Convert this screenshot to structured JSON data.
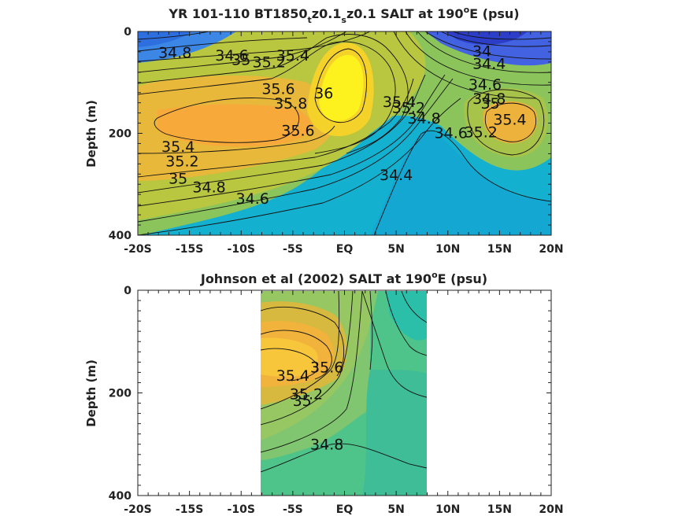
{
  "chart_data": [
    {
      "type": "heatmap",
      "title": {
        "prefix": "YR 101-110 BT1850",
        "sub1": "t",
        "mid": "z0.1",
        "sub2": "s",
        "suffix": "z0.1 SALT at 190",
        "sup": "o",
        "tail": "E (psu)"
      },
      "xlabel": "",
      "ylabel": "Depth (m)",
      "xlim": [
        -20,
        20
      ],
      "ylim": [
        0,
        400
      ],
      "y_reversed": true,
      "x_ticks": [
        -20,
        -15,
        -10,
        -5,
        0,
        5,
        10,
        15,
        20
      ],
      "x_tick_labels": [
        "-20S",
        "-15S",
        "-10S",
        "-5S",
        "EQ",
        "5N",
        "10N",
        "15N",
        "20N"
      ],
      "y_ticks": [
        0,
        200,
        400
      ],
      "y_tick_labels": [
        "0",
        "200",
        "400"
      ],
      "colormap": "parula",
      "color_range": [
        34.0,
        36.0
      ],
      "contour_interval": 0.2,
      "data_extent_x": [
        -20,
        20
      ],
      "contour_labels": [
        {
          "text": "34.8",
          "x": -16.4,
          "y": 52
        },
        {
          "text": "34.6",
          "x": -10.9,
          "y": 57
        },
        {
          "text": "35",
          "x": -10.0,
          "y": 66
        },
        {
          "text": "35.2",
          "x": -7.3,
          "y": 70
        },
        {
          "text": "35.4",
          "x": -5.0,
          "y": 57
        },
        {
          "text": "35.6",
          "x": -6.4,
          "y": 123
        },
        {
          "text": "35.8",
          "x": -5.2,
          "y": 151
        },
        {
          "text": "36",
          "x": -2.0,
          "y": 131
        },
        {
          "text": "35.6",
          "x": -4.5,
          "y": 205
        },
        {
          "text": "35.4",
          "x": -16.1,
          "y": 236
        },
        {
          "text": "35.2",
          "x": -15.7,
          "y": 265
        },
        {
          "text": "35",
          "x": -16.1,
          "y": 299
        },
        {
          "text": "34.8",
          "x": -13.1,
          "y": 316
        },
        {
          "text": "34.6",
          "x": -8.9,
          "y": 338
        },
        {
          "text": "35.4",
          "x": 5.3,
          "y": 148
        },
        {
          "text": "35.2",
          "x": 6.2,
          "y": 160
        },
        {
          "text": "34.8",
          "x": 7.7,
          "y": 181
        },
        {
          "text": "34.6",
          "x": 10.3,
          "y": 209
        },
        {
          "text": "34.4",
          "x": 5.0,
          "y": 292
        },
        {
          "text": "35.2",
          "x": 13.2,
          "y": 208
        },
        {
          "text": "35.4",
          "x": 16.0,
          "y": 183
        },
        {
          "text": "34",
          "x": 13.3,
          "y": 49
        },
        {
          "text": "34.4",
          "x": 14.0,
          "y": 73
        },
        {
          "text": "34.6",
          "x": 13.6,
          "y": 114
        },
        {
          "text": "34.8",
          "x": 14.0,
          "y": 142
        },
        {
          "text": "35",
          "x": 14.1,
          "y": 151
        }
      ]
    },
    {
      "type": "heatmap",
      "title": {
        "prefix": "Johnson et al (2002) SALT at 190",
        "sup": "o",
        "tail": "E (psu)"
      },
      "xlabel": "",
      "ylabel": "Depth (m)",
      "xlim": [
        -20,
        20
      ],
      "ylim": [
        0,
        400
      ],
      "y_reversed": true,
      "x_ticks": [
        -20,
        -15,
        -10,
        -5,
        0,
        5,
        10,
        15,
        20
      ],
      "x_tick_labels": [
        "-20S",
        "-15S",
        "-10S",
        "-5S",
        "EQ",
        "5N",
        "10N",
        "15N",
        "20N"
      ],
      "y_ticks": [
        0,
        200,
        400
      ],
      "y_tick_labels": [
        "0",
        "200",
        "400"
      ],
      "colormap": "parula",
      "color_range": [
        34.0,
        36.0
      ],
      "contour_interval": 0.2,
      "data_extent_x": [
        -8,
        8
      ],
      "contour_labels": [
        {
          "text": "35.4",
          "x": -5.0,
          "y": 176
        },
        {
          "text": "35.2",
          "x": -3.7,
          "y": 212
        },
        {
          "text": "35",
          "x": -4.1,
          "y": 225
        },
        {
          "text": "35.6",
          "x": -1.7,
          "y": 160
        },
        {
          "text": "34.8",
          "x": -1.7,
          "y": 310
        }
      ]
    }
  ]
}
